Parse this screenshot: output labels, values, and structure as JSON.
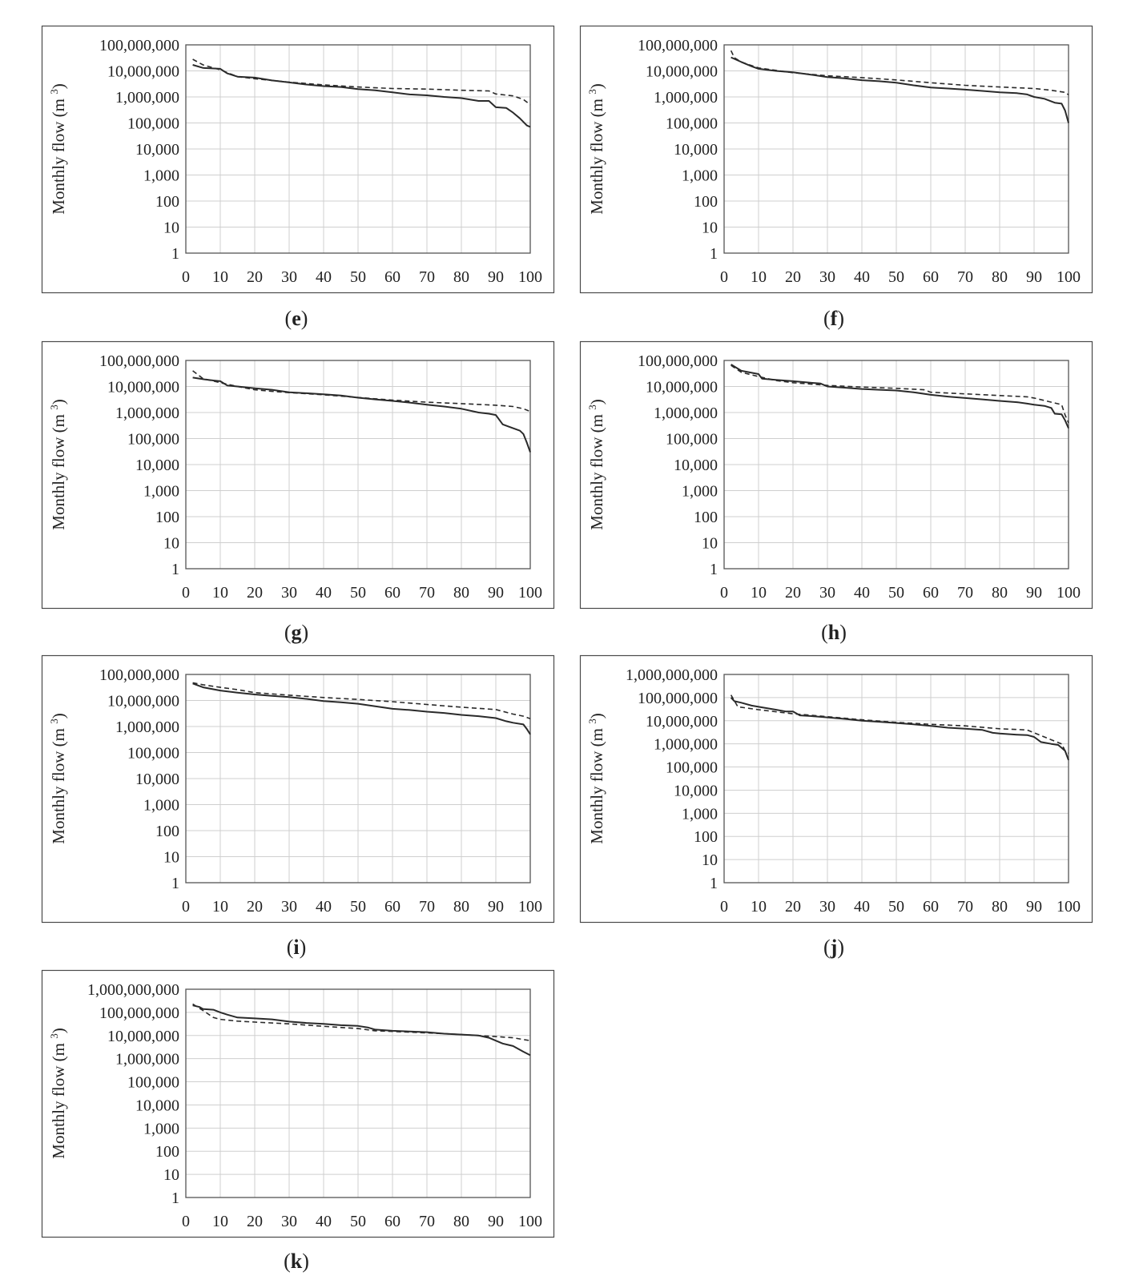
{
  "figure": {
    "y_axis_title": "Monthly flow (m",
    "y_axis_unit_sup": "3",
    "y_axis_title_close": ")"
  },
  "chart_data": [
    {
      "panel": "e",
      "type": "line",
      "xlim": [
        0,
        100
      ],
      "ylim": [
        1,
        100000000
      ],
      "yscale": "log",
      "grid": true,
      "xticks": [
        "0",
        "10",
        "20",
        "30",
        "40",
        "50",
        "60",
        "70",
        "80",
        "90",
        "100"
      ],
      "yticks": [
        "1",
        "10",
        "100",
        "1,000",
        "10,000",
        "100,000",
        "1,000,000",
        "10,000,000",
        "100,000,000"
      ],
      "series": [
        {
          "style": "solid",
          "x": [
            2,
            5,
            10,
            12,
            15,
            20,
            25,
            30,
            35,
            40,
            45,
            50,
            55,
            60,
            65,
            70,
            75,
            80,
            85,
            88,
            90,
            93,
            95,
            97,
            99,
            100
          ],
          "y": [
            17000000,
            13000000,
            12000000,
            8000000,
            6000000,
            5500000,
            4300000,
            3600000,
            3000000,
            2600000,
            2400000,
            2000000,
            1800000,
            1500000,
            1250000,
            1150000,
            1000000,
            900000,
            700000,
            700000,
            400000,
            380000,
            250000,
            150000,
            80000,
            70000
          ]
        },
        {
          "style": "dashed",
          "x": [
            2,
            5,
            10,
            15,
            20,
            25,
            30,
            40,
            50,
            60,
            70,
            80,
            88,
            90,
            95,
            98,
            100
          ],
          "y": [
            28000000,
            17000000,
            11000000,
            6000000,
            5000000,
            4300000,
            3700000,
            2900000,
            2400000,
            2100000,
            2000000,
            1800000,
            1700000,
            1300000,
            1100000,
            800000,
            500000
          ]
        }
      ]
    },
    {
      "panel": "f",
      "type": "line",
      "xlim": [
        0,
        100
      ],
      "ylim": [
        1,
        100000000
      ],
      "yscale": "log",
      "grid": true,
      "xticks": [
        "0",
        "10",
        "20",
        "30",
        "40",
        "50",
        "60",
        "70",
        "80",
        "90",
        "100"
      ],
      "yticks": [
        "1",
        "10",
        "100",
        "1,000",
        "10,000",
        "100,000",
        "1,000,000",
        "10,000,000",
        "100,000,000"
      ],
      "series": [
        {
          "style": "solid",
          "x": [
            2,
            5,
            8,
            10,
            15,
            20,
            25,
            30,
            35,
            40,
            45,
            50,
            55,
            60,
            65,
            70,
            75,
            80,
            85,
            88,
            90,
            93,
            96,
            98,
            99,
            100
          ],
          "y": [
            33000000,
            22000000,
            15000000,
            12000000,
            10000000,
            8800000,
            7200000,
            5800000,
            5200000,
            4400000,
            4000000,
            3500000,
            2800000,
            2300000,
            2100000,
            1900000,
            1700000,
            1500000,
            1400000,
            1250000,
            1000000,
            850000,
            600000,
            550000,
            300000,
            100000
          ]
        },
        {
          "style": "dashed",
          "x": [
            2,
            3,
            5,
            8,
            10,
            15,
            20,
            30,
            40,
            50,
            60,
            70,
            80,
            90,
            95,
            99,
            100
          ],
          "y": [
            60000000,
            32000000,
            22000000,
            16000000,
            13000000,
            10500000,
            8500000,
            6500000,
            5500000,
            4500000,
            3500000,
            2800000,
            2400000,
            2100000,
            1800000,
            1500000,
            1200000
          ]
        }
      ]
    },
    {
      "panel": "g",
      "type": "line",
      "xlim": [
        0,
        100
      ],
      "ylim": [
        1,
        100000000
      ],
      "yscale": "log",
      "grid": true,
      "xticks": [
        "0",
        "10",
        "20",
        "30",
        "40",
        "50",
        "60",
        "70",
        "80",
        "90",
        "100"
      ],
      "yticks": [
        "1",
        "10",
        "100",
        "1,000",
        "10,000",
        "100,000",
        "1,000,000",
        "10,000,000",
        "100,000,000"
      ],
      "series": [
        {
          "style": "solid",
          "x": [
            2,
            5,
            8,
            10,
            12,
            15,
            20,
            25,
            30,
            35,
            40,
            45,
            50,
            55,
            60,
            65,
            70,
            75,
            80,
            85,
            88,
            90,
            92,
            95,
            97,
            98,
            99,
            100
          ],
          "y": [
            22000000,
            19000000,
            17000000,
            16000000,
            11000000,
            10000000,
            8500000,
            7500000,
            6000000,
            5500000,
            5000000,
            4500000,
            3700000,
            3200000,
            2800000,
            2400000,
            2000000,
            1700000,
            1400000,
            1000000,
            900000,
            800000,
            350000,
            250000,
            200000,
            150000,
            70000,
            30000
          ]
        },
        {
          "style": "dashed",
          "x": [
            2,
            5,
            10,
            15,
            20,
            25,
            30,
            40,
            50,
            60,
            70,
            80,
            90,
            95,
            98,
            100
          ],
          "y": [
            40000000,
            20000000,
            14000000,
            10000000,
            7500000,
            6500000,
            5800000,
            4800000,
            3800000,
            3000000,
            2500000,
            2200000,
            1900000,
            1700000,
            1400000,
            1100000
          ]
        }
      ]
    },
    {
      "panel": "h",
      "type": "line",
      "xlim": [
        0,
        100
      ],
      "ylim": [
        1,
        100000000
      ],
      "yscale": "log",
      "grid": true,
      "xticks": [
        "0",
        "10",
        "20",
        "30",
        "40",
        "50",
        "60",
        "70",
        "80",
        "90",
        "100"
      ],
      "yticks": [
        "1",
        "10",
        "100",
        "1,000",
        "10,000",
        "100,000",
        "1,000,000",
        "10,000,000",
        "100,000,000"
      ],
      "series": [
        {
          "style": "solid",
          "x": [
            2,
            5,
            10,
            11,
            15,
            20,
            25,
            28,
            30,
            35,
            40,
            45,
            50,
            55,
            60,
            65,
            70,
            75,
            80,
            85,
            88,
            90,
            93,
            95,
            96,
            98,
            99,
            100
          ],
          "y": [
            70000000,
            40000000,
            30000000,
            20000000,
            18000000,
            16000000,
            14000000,
            13000000,
            10000000,
            9000000,
            8000000,
            7500000,
            7000000,
            6000000,
            4800000,
            4100000,
            3600000,
            3200000,
            2800000,
            2500000,
            2200000,
            2000000,
            1800000,
            1500000,
            900000,
            850000,
            500000,
            250000
          ]
        },
        {
          "style": "dashed",
          "x": [
            2,
            5,
            10,
            15,
            20,
            25,
            30,
            40,
            50,
            58,
            60,
            70,
            80,
            88,
            90,
            95,
            98,
            99,
            100
          ],
          "y": [
            65000000,
            35000000,
            24000000,
            17000000,
            14000000,
            12500000,
            11000000,
            9500000,
            8500000,
            7500000,
            6000000,
            5200000,
            4500000,
            4000000,
            3600000,
            2500000,
            2000000,
            800000,
            400000
          ]
        }
      ]
    },
    {
      "panel": "i",
      "type": "line",
      "xlim": [
        0,
        100
      ],
      "ylim": [
        1,
        100000000
      ],
      "yscale": "log",
      "grid": true,
      "xticks": [
        "0",
        "10",
        "20",
        "30",
        "40",
        "50",
        "60",
        "70",
        "80",
        "90",
        "100"
      ],
      "yticks": [
        "1",
        "10",
        "100",
        "1,000",
        "10,000",
        "100,000",
        "1,000,000",
        "10,000,000",
        "100,000,000"
      ],
      "series": [
        {
          "style": "solid",
          "x": [
            2,
            5,
            10,
            15,
            20,
            25,
            30,
            35,
            40,
            45,
            50,
            55,
            60,
            65,
            70,
            75,
            80,
            85,
            90,
            93,
            95,
            98,
            99,
            100
          ],
          "y": [
            45000000,
            32000000,
            24000000,
            20000000,
            17000000,
            15000000,
            13500000,
            11500000,
            9500000,
            8500000,
            7500000,
            6000000,
            4800000,
            4300000,
            3700000,
            3300000,
            2800000,
            2500000,
            2100000,
            1600000,
            1400000,
            1200000,
            800000,
            500000
          ]
        },
        {
          "style": "dashed",
          "x": [
            2,
            5,
            10,
            15,
            20,
            30,
            40,
            50,
            60,
            70,
            80,
            90,
            95,
            98,
            100
          ],
          "y": [
            48000000,
            40000000,
            32000000,
            26000000,
            20000000,
            16000000,
            13000000,
            11000000,
            9000000,
            7000000,
            5500000,
            4500000,
            3000000,
            2500000,
            2000000
          ]
        }
      ]
    },
    {
      "panel": "j",
      "type": "line",
      "xlim": [
        0,
        100
      ],
      "ylim": [
        1,
        1000000000
      ],
      "yscale": "log",
      "grid": true,
      "xticks": [
        "0",
        "10",
        "20",
        "30",
        "40",
        "50",
        "60",
        "70",
        "80",
        "90",
        "100"
      ],
      "yticks": [
        "1",
        "10",
        "100",
        "1,000",
        "10,000",
        "100,000",
        "1,000,000",
        "10,000,000",
        "100,000,000",
        "1,000,000,000"
      ],
      "series": [
        {
          "style": "solid",
          "x": [
            2,
            3,
            5,
            8,
            10,
            15,
            18,
            20,
            22,
            25,
            30,
            35,
            40,
            45,
            50,
            55,
            60,
            65,
            70,
            75,
            78,
            80,
            85,
            88,
            90,
            92,
            95,
            97,
            99,
            100
          ],
          "y": [
            100000000,
            70000000,
            60000000,
            45000000,
            40000000,
            30000000,
            25000000,
            25000000,
            17000000,
            16000000,
            14000000,
            12000000,
            10000000,
            9000000,
            8000000,
            7000000,
            6000000,
            5000000,
            4500000,
            4000000,
            3000000,
            2800000,
            2500000,
            2400000,
            2000000,
            1200000,
            1000000,
            900000,
            500000,
            200000
          ]
        },
        {
          "style": "dashed",
          "x": [
            2,
            4,
            10,
            20,
            30,
            40,
            50,
            60,
            70,
            80,
            88,
            90,
            95,
            98,
            99,
            100
          ],
          "y": [
            130000000,
            40000000,
            30000000,
            20000000,
            15000000,
            11000000,
            8500000,
            7000000,
            6000000,
            4500000,
            4000000,
            3000000,
            1500000,
            1000000,
            500000,
            400000
          ]
        }
      ]
    },
    {
      "panel": "k",
      "type": "line",
      "xlim": [
        0,
        100
      ],
      "ylim": [
        1,
        1000000000
      ],
      "yscale": "log",
      "grid": true,
      "xticks": [
        "0",
        "10",
        "20",
        "30",
        "40",
        "50",
        "60",
        "70",
        "80",
        "90",
        "100"
      ],
      "yticks": [
        "1",
        "10",
        "100",
        "1,000",
        "10,000",
        "100,000",
        "1,000,000",
        "10,000,000",
        "100,000,000",
        "1,000,000,000"
      ],
      "series": [
        {
          "style": "solid",
          "x": [
            2,
            4,
            5,
            8,
            10,
            12,
            15,
            20,
            25,
            30,
            35,
            40,
            45,
            50,
            53,
            55,
            60,
            65,
            70,
            75,
            80,
            85,
            88,
            90,
            92,
            95,
            98,
            100
          ],
          "y": [
            200000000,
            170000000,
            140000000,
            130000000,
            100000000,
            80000000,
            60000000,
            55000000,
            50000000,
            40000000,
            35000000,
            32000000,
            28000000,
            26000000,
            22000000,
            18000000,
            16000000,
            15000000,
            14000000,
            12000000,
            11000000,
            10000000,
            8000000,
            6000000,
            4500000,
            3500000,
            2000000,
            1400000
          ]
        },
        {
          "style": "dashed",
          "x": [
            2,
            5,
            8,
            10,
            15,
            20,
            30,
            40,
            50,
            55,
            60,
            70,
            80,
            90,
            95,
            100
          ],
          "y": [
            230000000,
            120000000,
            60000000,
            50000000,
            42000000,
            38000000,
            32000000,
            25000000,
            20000000,
            16000000,
            15000000,
            13000000,
            11000000,
            9000000,
            8000000,
            6000000
          ]
        }
      ]
    }
  ],
  "captions": {
    "e": {
      "open": "(",
      "letter": "e",
      "close": ")"
    },
    "f": {
      "open": "(",
      "letter": "f",
      "close": ")"
    },
    "g": {
      "open": "(",
      "letter": "g",
      "close": ")"
    },
    "h": {
      "open": "(",
      "letter": "h",
      "close": ")"
    },
    "i": {
      "open": "(",
      "letter": "i",
      "close": ")"
    },
    "j": {
      "open": "(",
      "letter": "j",
      "close": ")"
    },
    "k": {
      "open": "(",
      "letter": "k",
      "close": ")"
    }
  }
}
